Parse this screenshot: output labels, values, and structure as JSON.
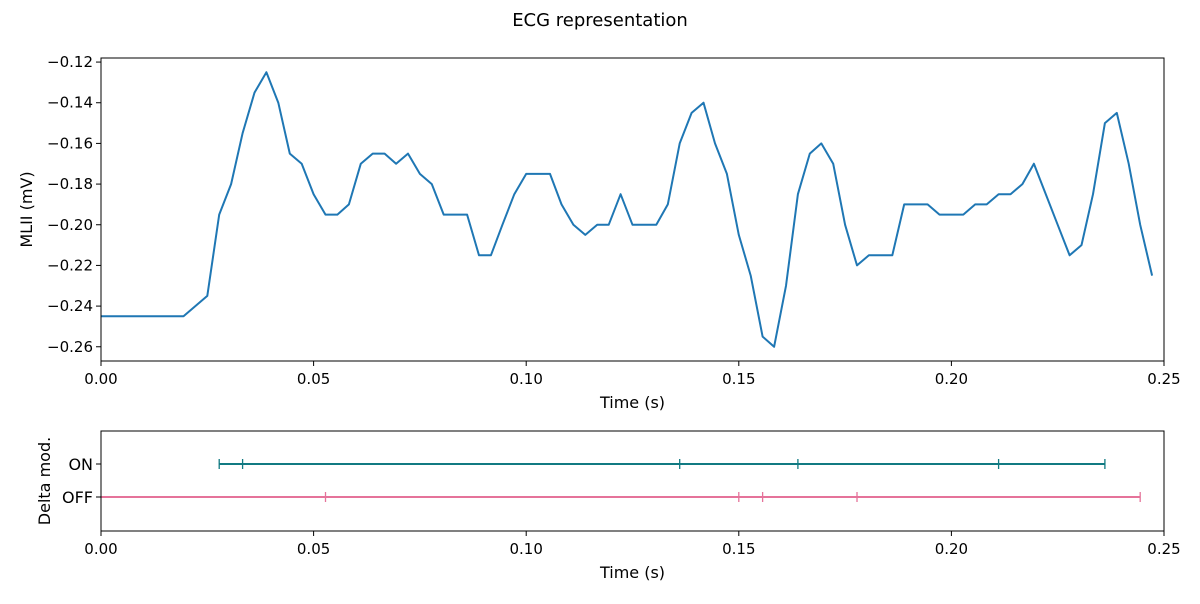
{
  "figure": {
    "title": "ECG representation"
  },
  "chart_data": [
    {
      "type": "line",
      "title": "ECG representation",
      "xlabel": "Time (s)",
      "ylabel": "MLII (mV)",
      "xlim": [
        0,
        0.25
      ],
      "ylim": [
        -0.267,
        -0.118
      ],
      "xticks": [
        0.0,
        0.05,
        0.1,
        0.15,
        0.2,
        0.25
      ],
      "xtick_labels": [
        "0.00",
        "0.05",
        "0.10",
        "0.15",
        "0.20",
        "0.25"
      ],
      "yticks": [
        -0.26,
        -0.24,
        -0.22,
        -0.2,
        -0.18,
        -0.16,
        -0.14,
        -0.12
      ],
      "ytick_labels": [
        "−0.26",
        "−0.24",
        "−0.22",
        "−0.20",
        "−0.18",
        "−0.16",
        "−0.14",
        "−0.12"
      ],
      "grid": false,
      "color": "#1f77b4",
      "series": [
        {
          "x": [
            0,
            0.0194,
            0.025,
            0.0278,
            0.0306,
            0.0333,
            0.0361,
            0.0389,
            0.0417,
            0.0444,
            0.0472,
            0.05,
            0.0528,
            0.0556,
            0.0583,
            0.0611,
            0.0639,
            0.0667,
            0.0694,
            0.0722,
            0.075,
            0.0778,
            0.0806,
            0.0833,
            0.0861,
            0.0889,
            0.0917,
            0.0944,
            0.0972,
            0.1,
            0.1028,
            0.1056,
            0.1083,
            0.1111,
            0.1139,
            0.1167,
            0.1194,
            0.1222,
            0.125,
            0.1278,
            0.1306,
            0.1333,
            0.1361,
            0.1389,
            0.1417,
            0.1444,
            0.1472,
            0.15,
            0.1528,
            0.1556,
            0.1583,
            0.1611,
            0.1639,
            0.1667,
            0.1694,
            0.1722,
            0.175,
            0.1778,
            0.1806,
            0.1833,
            0.1861,
            0.1889,
            0.1917,
            0.1944,
            0.1972,
            0.2,
            0.2028,
            0.2056,
            0.2083,
            0.2111,
            0.2139,
            0.2167,
            0.2194,
            0.2222,
            0.225,
            0.2278,
            0.2306,
            0.2333,
            0.2361,
            0.2389,
            0.2417,
            0.2444,
            0.2472
          ],
          "y": [
            -0.245,
            -0.245,
            -0.235,
            -0.195,
            -0.18,
            -0.155,
            -0.135,
            -0.125,
            -0.14,
            -0.165,
            -0.17,
            -0.185,
            -0.195,
            -0.195,
            -0.19,
            -0.17,
            -0.165,
            -0.165,
            -0.17,
            -0.165,
            -0.175,
            -0.18,
            -0.195,
            -0.195,
            -0.195,
            -0.215,
            -0.215,
            -0.2,
            -0.185,
            -0.175,
            -0.175,
            -0.175,
            -0.19,
            -0.2,
            -0.205,
            -0.2,
            -0.2,
            -0.185,
            -0.2,
            -0.2,
            -0.2,
            -0.19,
            -0.16,
            -0.145,
            -0.14,
            -0.16,
            -0.175,
            -0.205,
            -0.225,
            -0.255,
            -0.26,
            -0.23,
            -0.185,
            -0.165,
            -0.16,
            -0.17,
            -0.2,
            -0.22,
            -0.215,
            -0.215,
            -0.215,
            -0.19,
            -0.19,
            -0.19,
            -0.195,
            -0.195,
            -0.195,
            -0.19,
            -0.19,
            -0.185,
            -0.185,
            -0.18,
            -0.17,
            -0.185,
            -0.2,
            -0.215,
            -0.21,
            -0.185,
            -0.15,
            -0.145,
            -0.17,
            -0.2,
            -0.225
          ]
        }
      ]
    },
    {
      "type": "line",
      "xlabel": "Time (s)",
      "ylabel": "Delta mod.",
      "xlim": [
        0,
        0.25
      ],
      "xticks": [
        0.0,
        0.05,
        0.1,
        0.15,
        0.2,
        0.25
      ],
      "xtick_labels": [
        "0.00",
        "0.05",
        "0.10",
        "0.15",
        "0.20",
        "0.25"
      ],
      "categories": [
        "ON",
        "OFF"
      ],
      "grid": false,
      "series": [
        {
          "category": "ON",
          "color": "#117a82",
          "x_start": 0.0278,
          "x_end": 0.2361,
          "markers": [
            0.0278,
            0.0333,
            0.1361,
            0.1639,
            0.2111,
            0.2361
          ]
        },
        {
          "category": "OFF",
          "color": "#e5739a",
          "x_start": 0.0,
          "x_end": 0.2444,
          "markers": [
            0.0528,
            0.15,
            0.1556,
            0.1778,
            0.2444
          ]
        }
      ]
    }
  ]
}
